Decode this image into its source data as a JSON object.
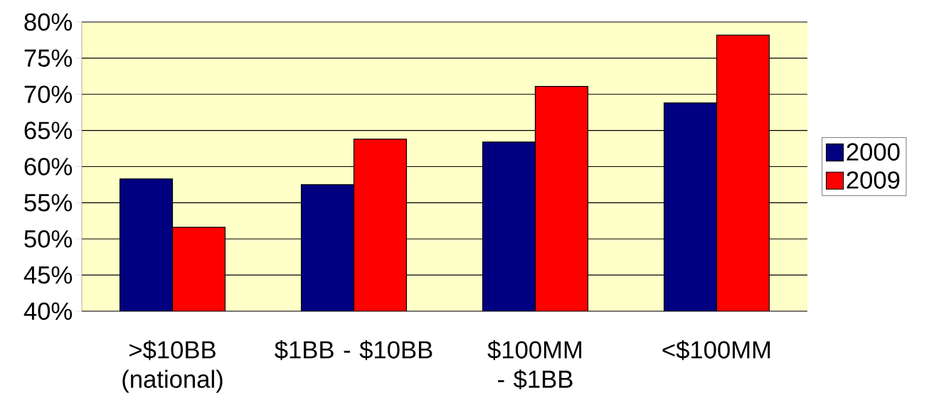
{
  "chart_data": {
    "type": "bar",
    "categories": [
      ">$10BB (national)",
      "$1BB - $10BB",
      "$100MM - $1BB",
      "<$100MM"
    ],
    "series": [
      {
        "name": "2000",
        "color": "#000080",
        "values": [
          58.3,
          57.5,
          63.4,
          68.8
        ]
      },
      {
        "name": "2009",
        "color": "#ff0000",
        "values": [
          51.6,
          63.8,
          71.1,
          78.2
        ]
      }
    ],
    "ylim": [
      40,
      80
    ],
    "yticks": [
      {
        "value": 40,
        "label": "40%"
      },
      {
        "value": 45,
        "label": "45%"
      },
      {
        "value": 50,
        "label": "50%"
      },
      {
        "value": 55,
        "label": "55%"
      },
      {
        "value": 60,
        "label": "60%"
      },
      {
        "value": 65,
        "label": "65%"
      },
      {
        "value": 70,
        "label": "70%"
      },
      {
        "value": 75,
        "label": "75%"
      },
      {
        "value": 80,
        "label": "80%"
      }
    ],
    "grid": "y",
    "legend": "right"
  }
}
